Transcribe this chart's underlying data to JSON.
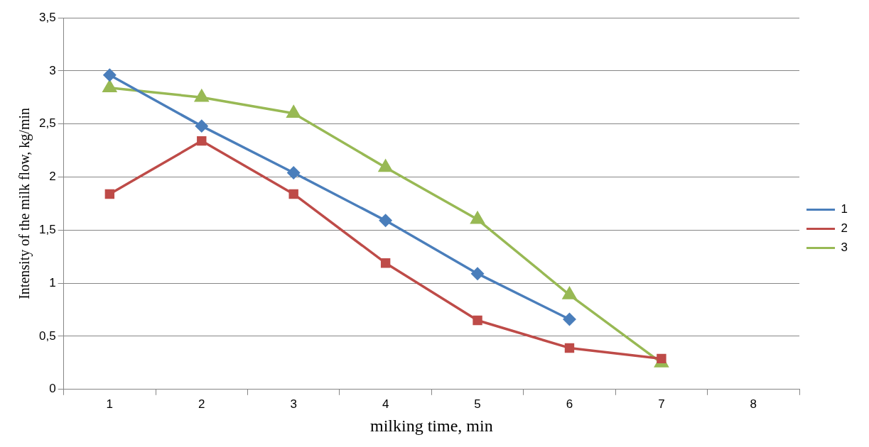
{
  "chart_data": {
    "type": "line",
    "xlabel": "milking time, min",
    "ylabel": "Intensity of the milk flow, kg/min",
    "categories": [
      "1",
      "2",
      "3",
      "4",
      "5",
      "6",
      "7",
      "8"
    ],
    "series": [
      {
        "name": "1",
        "color": "#4a7ebb",
        "marker": "diamond",
        "values": [
          2.96,
          2.48,
          2.04,
          1.59,
          1.09,
          0.66,
          null,
          null
        ]
      },
      {
        "name": "2",
        "color": "#be4b48",
        "marker": "square",
        "values": [
          1.84,
          2.34,
          1.84,
          1.19,
          0.65,
          0.39,
          0.29,
          null
        ]
      },
      {
        "name": "3",
        "color": "#98b954",
        "marker": "triangle",
        "values": [
          2.84,
          2.75,
          2.6,
          2.09,
          1.6,
          0.89,
          0.25,
          null
        ]
      }
    ],
    "ylim": [
      0,
      3.5
    ],
    "yticks": [
      0,
      {
        "value": 0.5,
        "label": "0,5"
      },
      1,
      {
        "value": 1.5,
        "label": "1,5"
      },
      2,
      {
        "value": 2.5,
        "label": "2,5"
      },
      3,
      {
        "value": 3.5,
        "label": "3,5"
      }
    ],
    "grid": "y",
    "legend": "right",
    "line_style": "solid"
  }
}
